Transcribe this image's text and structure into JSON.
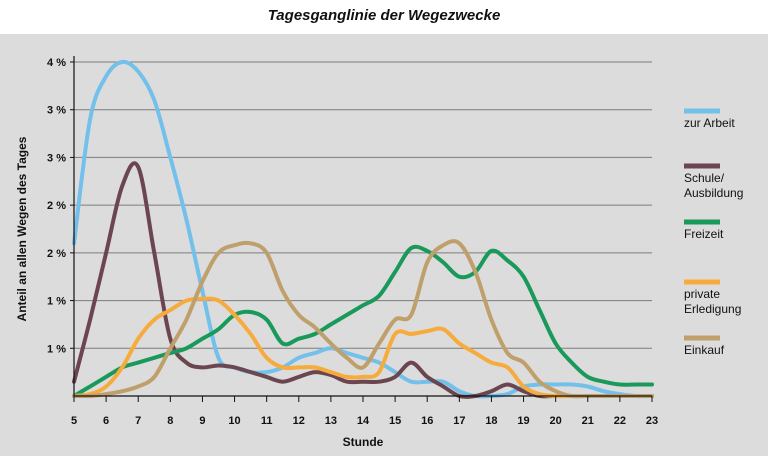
{
  "chart_data": {
    "type": "line",
    "title": "Tagesganglinie der Wegezwecke",
    "xlabel": "Stunde",
    "ylabel": "Anteil an allen Wegen des Tages",
    "x": [
      5,
      5.5,
      6,
      6.5,
      7,
      7.5,
      8,
      8.5,
      9,
      9.5,
      10,
      10.5,
      11,
      11.5,
      12,
      12.5,
      13,
      13.5,
      14,
      14.5,
      15,
      15.5,
      16,
      16.5,
      17,
      17.5,
      18,
      18.5,
      19,
      19.5,
      20,
      20.5,
      21,
      21.5,
      22,
      22.5,
      23
    ],
    "x_ticks": [
      "5",
      "6",
      "7",
      "8",
      "9",
      "10",
      "11",
      "12",
      "13",
      "14",
      "15",
      "16",
      "17",
      "18",
      "19",
      "20",
      "21",
      "22",
      "23"
    ],
    "y_tick_labels": [
      "1 %",
      "1 %",
      "2 %",
      "2 %",
      "3 %",
      "3 %",
      "4 %"
    ],
    "y_tick_values": [
      0.5,
      1.0,
      1.5,
      2.0,
      2.5,
      3.0,
      3.5
    ],
    "xlim": [
      5,
      23
    ],
    "ylim": [
      0,
      3.5
    ],
    "grid": "horizontal",
    "legend": "right",
    "series": [
      {
        "name": "zur Arbeit",
        "color": "#73c0ea",
        "values": [
          1.6,
          2.9,
          3.35,
          3.5,
          3.4,
          3.1,
          2.5,
          1.85,
          1.1,
          0.4,
          0.3,
          0.25,
          0.25,
          0.3,
          0.4,
          0.45,
          0.5,
          0.45,
          0.4,
          0.35,
          0.25,
          0.15,
          0.15,
          0.15,
          0.05,
          0.0,
          0.0,
          0.02,
          0.1,
          0.12,
          0.12,
          0.12,
          0.1,
          0.05,
          0.02,
          0.0,
          0.0
        ]
      },
      {
        "name": "Schule/\nAusbildung",
        "color": "#6b4650",
        "values": [
          0.15,
          0.8,
          1.5,
          2.2,
          2.4,
          1.5,
          0.6,
          0.35,
          0.3,
          0.32,
          0.3,
          0.25,
          0.2,
          0.15,
          0.2,
          0.25,
          0.22,
          0.15,
          0.15,
          0.15,
          0.2,
          0.35,
          0.2,
          0.1,
          0.0,
          0.0,
          0.05,
          0.12,
          0.05,
          0.0,
          0.0,
          0.0,
          0.0,
          0.0,
          0.0,
          0.0,
          0.0
        ]
      },
      {
        "name": "Freizeit",
        "color": "#1a9a5a",
        "values": [
          0.0,
          0.1,
          0.2,
          0.3,
          0.35,
          0.4,
          0.45,
          0.5,
          0.6,
          0.7,
          0.85,
          0.88,
          0.8,
          0.55,
          0.6,
          0.65,
          0.75,
          0.85,
          0.95,
          1.05,
          1.3,
          1.55,
          1.52,
          1.4,
          1.25,
          1.3,
          1.52,
          1.42,
          1.25,
          0.9,
          0.55,
          0.35,
          0.2,
          0.15,
          0.12,
          0.12,
          0.12
        ]
      },
      {
        "name": "private\nErledigung",
        "color": "#f6ab3c",
        "values": [
          0.0,
          0.02,
          0.1,
          0.3,
          0.6,
          0.8,
          0.9,
          1.0,
          1.02,
          1.0,
          0.85,
          0.65,
          0.4,
          0.3,
          0.3,
          0.3,
          0.25,
          0.2,
          0.2,
          0.25,
          0.65,
          0.65,
          0.68,
          0.7,
          0.55,
          0.45,
          0.35,
          0.3,
          0.1,
          0.02,
          0.0,
          0.0,
          0.0,
          0.0,
          0.0,
          0.0,
          0.0
        ]
      },
      {
        "name": "Einkauf",
        "color": "#bf9f6b",
        "values": [
          0.0,
          0.0,
          0.02,
          0.05,
          0.1,
          0.2,
          0.5,
          0.8,
          1.2,
          1.5,
          1.58,
          1.6,
          1.5,
          1.1,
          0.85,
          0.72,
          0.55,
          0.4,
          0.3,
          0.55,
          0.8,
          0.85,
          1.4,
          1.58,
          1.6,
          1.3,
          0.8,
          0.45,
          0.35,
          0.15,
          0.05,
          0.0,
          0.0,
          0.0,
          0.0,
          0.0,
          0.0
        ]
      }
    ]
  }
}
